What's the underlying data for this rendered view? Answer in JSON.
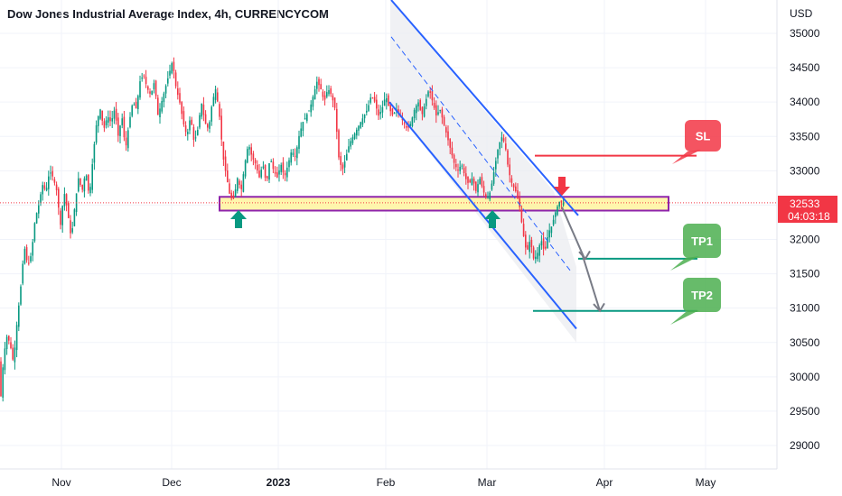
{
  "chart_data": {
    "type": "candlestick",
    "title": "Dow Jones Industrial Average Index, 4h, CURRENCYCOM",
    "currency_label": "USD",
    "y_ticks": [
      35000,
      34500,
      34000,
      33500,
      33000,
      32500,
      32000,
      31500,
      31000,
      30500,
      30000,
      29500,
      29000
    ],
    "ylim": [
      28800,
      35300
    ],
    "x_ticks": [
      {
        "label": "Nov",
        "bold": false
      },
      {
        "label": "Dec",
        "bold": false
      },
      {
        "label": "2023",
        "bold": true
      },
      {
        "label": "Feb",
        "bold": false
      },
      {
        "label": "Mar",
        "bold": false
      },
      {
        "label": "Apr",
        "bold": false
      },
      {
        "label": "May",
        "bold": false
      }
    ],
    "price_path": [
      [
        0,
        30200
      ],
      [
        2,
        29700
      ],
      [
        4,
        30100
      ],
      [
        8,
        30600
      ],
      [
        12,
        30500
      ],
      [
        16,
        30200
      ],
      [
        20,
        30800
      ],
      [
        24,
        31300
      ],
      [
        28,
        31900
      ],
      [
        32,
        31600
      ],
      [
        36,
        31800
      ],
      [
        40,
        32300
      ],
      [
        44,
        32500
      ],
      [
        48,
        32800
      ],
      [
        52,
        32700
      ],
      [
        56,
        33000
      ],
      [
        60,
        32900
      ],
      [
        64,
        32700
      ],
      [
        68,
        32200
      ],
      [
        72,
        32700
      ],
      [
        76,
        32400
      ],
      [
        80,
        32000
      ],
      [
        84,
        32500
      ],
      [
        88,
        32900
      ],
      [
        92,
        32700
      ],
      [
        96,
        33000
      ],
      [
        100,
        32600
      ],
      [
        104,
        33200
      ],
      [
        108,
        33700
      ],
      [
        112,
        33900
      ],
      [
        116,
        33600
      ],
      [
        120,
        33800
      ],
      [
        124,
        33700
      ],
      [
        128,
        33900
      ],
      [
        132,
        33500
      ],
      [
        136,
        33800
      ],
      [
        140,
        33300
      ],
      [
        144,
        33700
      ],
      [
        148,
        34000
      ],
      [
        152,
        33900
      ],
      [
        156,
        34300
      ],
      [
        160,
        34400
      ],
      [
        164,
        34200
      ],
      [
        168,
        34100
      ],
      [
        172,
        34300
      ],
      [
        176,
        33800
      ],
      [
        180,
        34000
      ],
      [
        184,
        34200
      ],
      [
        188,
        34400
      ],
      [
        192,
        34600
      ],
      [
        196,
        34200
      ],
      [
        200,
        34000
      ],
      [
        204,
        33700
      ],
      [
        208,
        33500
      ],
      [
        212,
        33800
      ],
      [
        216,
        33400
      ],
      [
        220,
        33600
      ],
      [
        224,
        34000
      ],
      [
        228,
        33700
      ],
      [
        232,
        33600
      ],
      [
        236,
        34000
      ],
      [
        240,
        34200
      ],
      [
        244,
        33800
      ],
      [
        248,
        33200
      ],
      [
        252,
        32900
      ],
      [
        256,
        32600
      ],
      [
        260,
        32600
      ],
      [
        264,
        32900
      ],
      [
        268,
        32700
      ],
      [
        272,
        33100
      ],
      [
        276,
        33400
      ],
      [
        280,
        33200
      ],
      [
        284,
        33100
      ],
      [
        288,
        32900
      ],
      [
        292,
        33100
      ],
      [
        296,
        32800
      ],
      [
        300,
        33200
      ],
      [
        304,
        33000
      ],
      [
        308,
        32900
      ],
      [
        312,
        33100
      ],
      [
        316,
        32900
      ],
      [
        320,
        33100
      ],
      [
        324,
        33300
      ],
      [
        328,
        33200
      ],
      [
        332,
        33500
      ],
      [
        336,
        33700
      ],
      [
        340,
        33800
      ],
      [
        344,
        33900
      ],
      [
        348,
        34100
      ],
      [
        352,
        34300
      ],
      [
        356,
        34200
      ],
      [
        360,
        34000
      ],
      [
        364,
        34200
      ],
      [
        368,
        34100
      ],
      [
        372,
        33900
      ],
      [
        376,
        33200
      ],
      [
        380,
        33000
      ],
      [
        384,
        33200
      ],
      [
        388,
        33400
      ],
      [
        392,
        33500
      ],
      [
        396,
        33600
      ],
      [
        400,
        33700
      ],
      [
        404,
        33800
      ],
      [
        408,
        33900
      ],
      [
        412,
        34100
      ],
      [
        416,
        34000
      ],
      [
        420,
        33800
      ],
      [
        424,
        33900
      ],
      [
        428,
        34100
      ],
      [
        432,
        33900
      ],
      [
        436,
        33800
      ],
      [
        440,
        33900
      ],
      [
        444,
        33800
      ],
      [
        448,
        33700
      ],
      [
        452,
        33600
      ],
      [
        456,
        33700
      ],
      [
        460,
        33900
      ],
      [
        464,
        34000
      ],
      [
        468,
        33800
      ],
      [
        472,
        34000
      ],
      [
        476,
        34200
      ],
      [
        480,
        34000
      ],
      [
        484,
        33800
      ],
      [
        488,
        33900
      ],
      [
        492,
        33700
      ],
      [
        496,
        33500
      ],
      [
        500,
        33300
      ],
      [
        504,
        33100
      ],
      [
        508,
        33000
      ],
      [
        512,
        33100
      ],
      [
        516,
        32900
      ],
      [
        520,
        32800
      ],
      [
        524,
        32900
      ],
      [
        528,
        32700
      ],
      [
        532,
        32900
      ],
      [
        536,
        32700
      ],
      [
        540,
        32600
      ],
      [
        544,
        32700
      ],
      [
        548,
        33000
      ],
      [
        552,
        33300
      ],
      [
        556,
        33500
      ],
      [
        560,
        33400
      ],
      [
        564,
        33000
      ],
      [
        568,
        32800
      ],
      [
        572,
        32700
      ],
      [
        576,
        32500
      ],
      [
        580,
        32100
      ],
      [
        584,
        31800
      ],
      [
        588,
        32000
      ],
      [
        592,
        31700
      ],
      [
        596,
        31800
      ],
      [
        600,
        32000
      ],
      [
        604,
        31800
      ],
      [
        608,
        32100
      ],
      [
        612,
        32200
      ],
      [
        616,
        32400
      ],
      [
        620,
        32550
      ],
      [
        624,
        32530
      ]
    ],
    "channel_upper": [
      [
        433,
        35300
      ],
      [
        613,
        32700
      ]
    ],
    "channel_lower": [
      [
        431,
        34000
      ],
      [
        638,
        30700
      ]
    ],
    "channel_mid": [
      [
        433,
        34950
      ],
      [
        631,
        31550
      ]
    ],
    "support_zone": {
      "from": 32420,
      "to": 32620
    },
    "sl_level": 33220,
    "tp1_level": 31720,
    "tp2_level": 30960,
    "last_price": 32533,
    "last_price_label": "32533",
    "countdown": "04:03:18",
    "annotations": [
      {
        "text": "SL",
        "color": "#f23645"
      },
      {
        "text": "TP1",
        "color": "#4caf50"
      },
      {
        "text": "TP2",
        "color": "#4caf50"
      }
    ],
    "bull_color": "#089981",
    "bear_color": "#f23645",
    "channel_color": "#2962ff"
  }
}
